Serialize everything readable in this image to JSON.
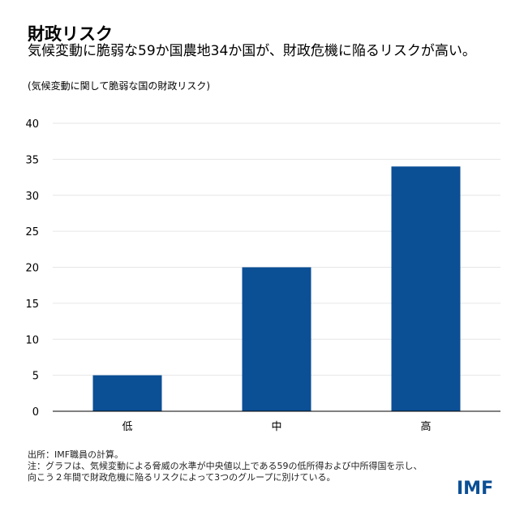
{
  "header": {
    "title": "財政リスク",
    "subtitle": "気候変動に脆弱な59か国農地34か国が、財政危機に陥るリスクが高い。",
    "note": "(気候変動に関して脆弱な国の財政リスク)"
  },
  "footer": {
    "source": "出所：IMF職員の計算。",
    "note1": "注：グラフは、気候変動による脅威の水準が中央値以上である59の低所得および中所得国を示し、",
    "note2": "向こう２年間で財政危機に陥るリスクによって3つのグループに別けている。",
    "logo": "IMF"
  },
  "chart_data": {
    "type": "bar",
    "title": "",
    "xlabel": "",
    "ylabel": "",
    "categories": [
      "低",
      "中",
      "高"
    ],
    "values": [
      5,
      20,
      34
    ],
    "ylim": [
      0,
      40
    ],
    "yticks": [
      0,
      5,
      10,
      15,
      20,
      25,
      30,
      35,
      40
    ],
    "grid": true,
    "color": "#0b4f95"
  }
}
